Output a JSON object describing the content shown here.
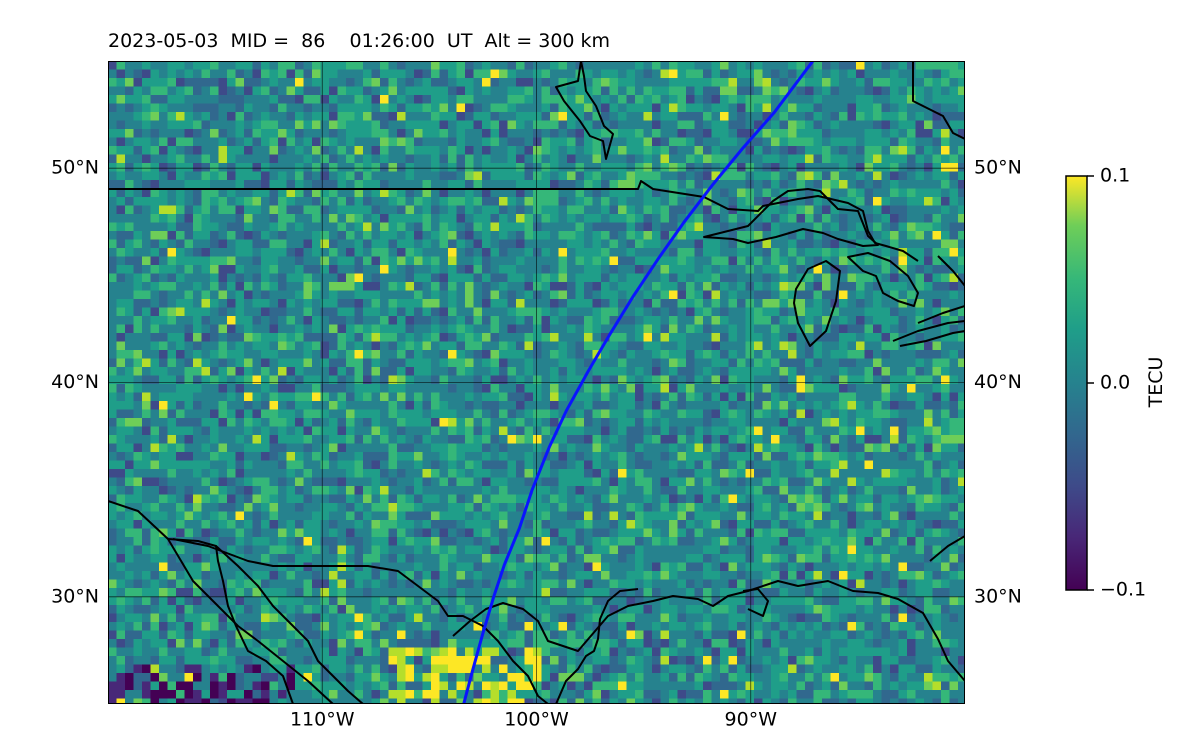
{
  "header": {
    "title": "2023-05-03  MID =  86    01:26:00  UT  Alt = 300 km"
  },
  "map": {
    "lon_range": [
      -120,
      -80
    ],
    "lat_range": [
      25,
      55
    ],
    "lat_ticks": [
      {
        "value": 30,
        "label": "30°N"
      },
      {
        "value": 40,
        "label": "40°N"
      },
      {
        "value": 50,
        "label": "50°N"
      }
    ],
    "lon_ticks": [
      {
        "value": -110,
        "label": "110°W"
      },
      {
        "value": -100,
        "label": "100°W"
      },
      {
        "value": -90,
        "label": "90°W"
      }
    ],
    "track_color": "#0a14ff",
    "track": [
      [
        -103.4,
        25.0
      ],
      [
        -103.0,
        26.5
      ],
      [
        -102.5,
        28.3
      ],
      [
        -102.0,
        30.0
      ],
      [
        -101.5,
        31.5
      ],
      [
        -100.8,
        33.2
      ],
      [
        -100.2,
        35.0
      ],
      [
        -99.4,
        37.0
      ],
      [
        -98.6,
        38.7
      ],
      [
        -97.6,
        40.5
      ],
      [
        -96.6,
        42.2
      ],
      [
        -95.5,
        44.0
      ],
      [
        -94.3,
        45.8
      ],
      [
        -93.1,
        47.5
      ],
      [
        -91.8,
        49.2
      ],
      [
        -90.4,
        50.9
      ],
      [
        -88.9,
        52.6
      ],
      [
        -87.1,
        55.0
      ]
    ]
  },
  "colorbar": {
    "label": "TECU",
    "min": -0.1,
    "max": 0.1,
    "ticks": [
      {
        "value": 0.1,
        "label": "0.1"
      },
      {
        "value": 0.0,
        "label": "0.0"
      },
      {
        "value": -0.1,
        "label": "−0.1"
      }
    ]
  }
}
